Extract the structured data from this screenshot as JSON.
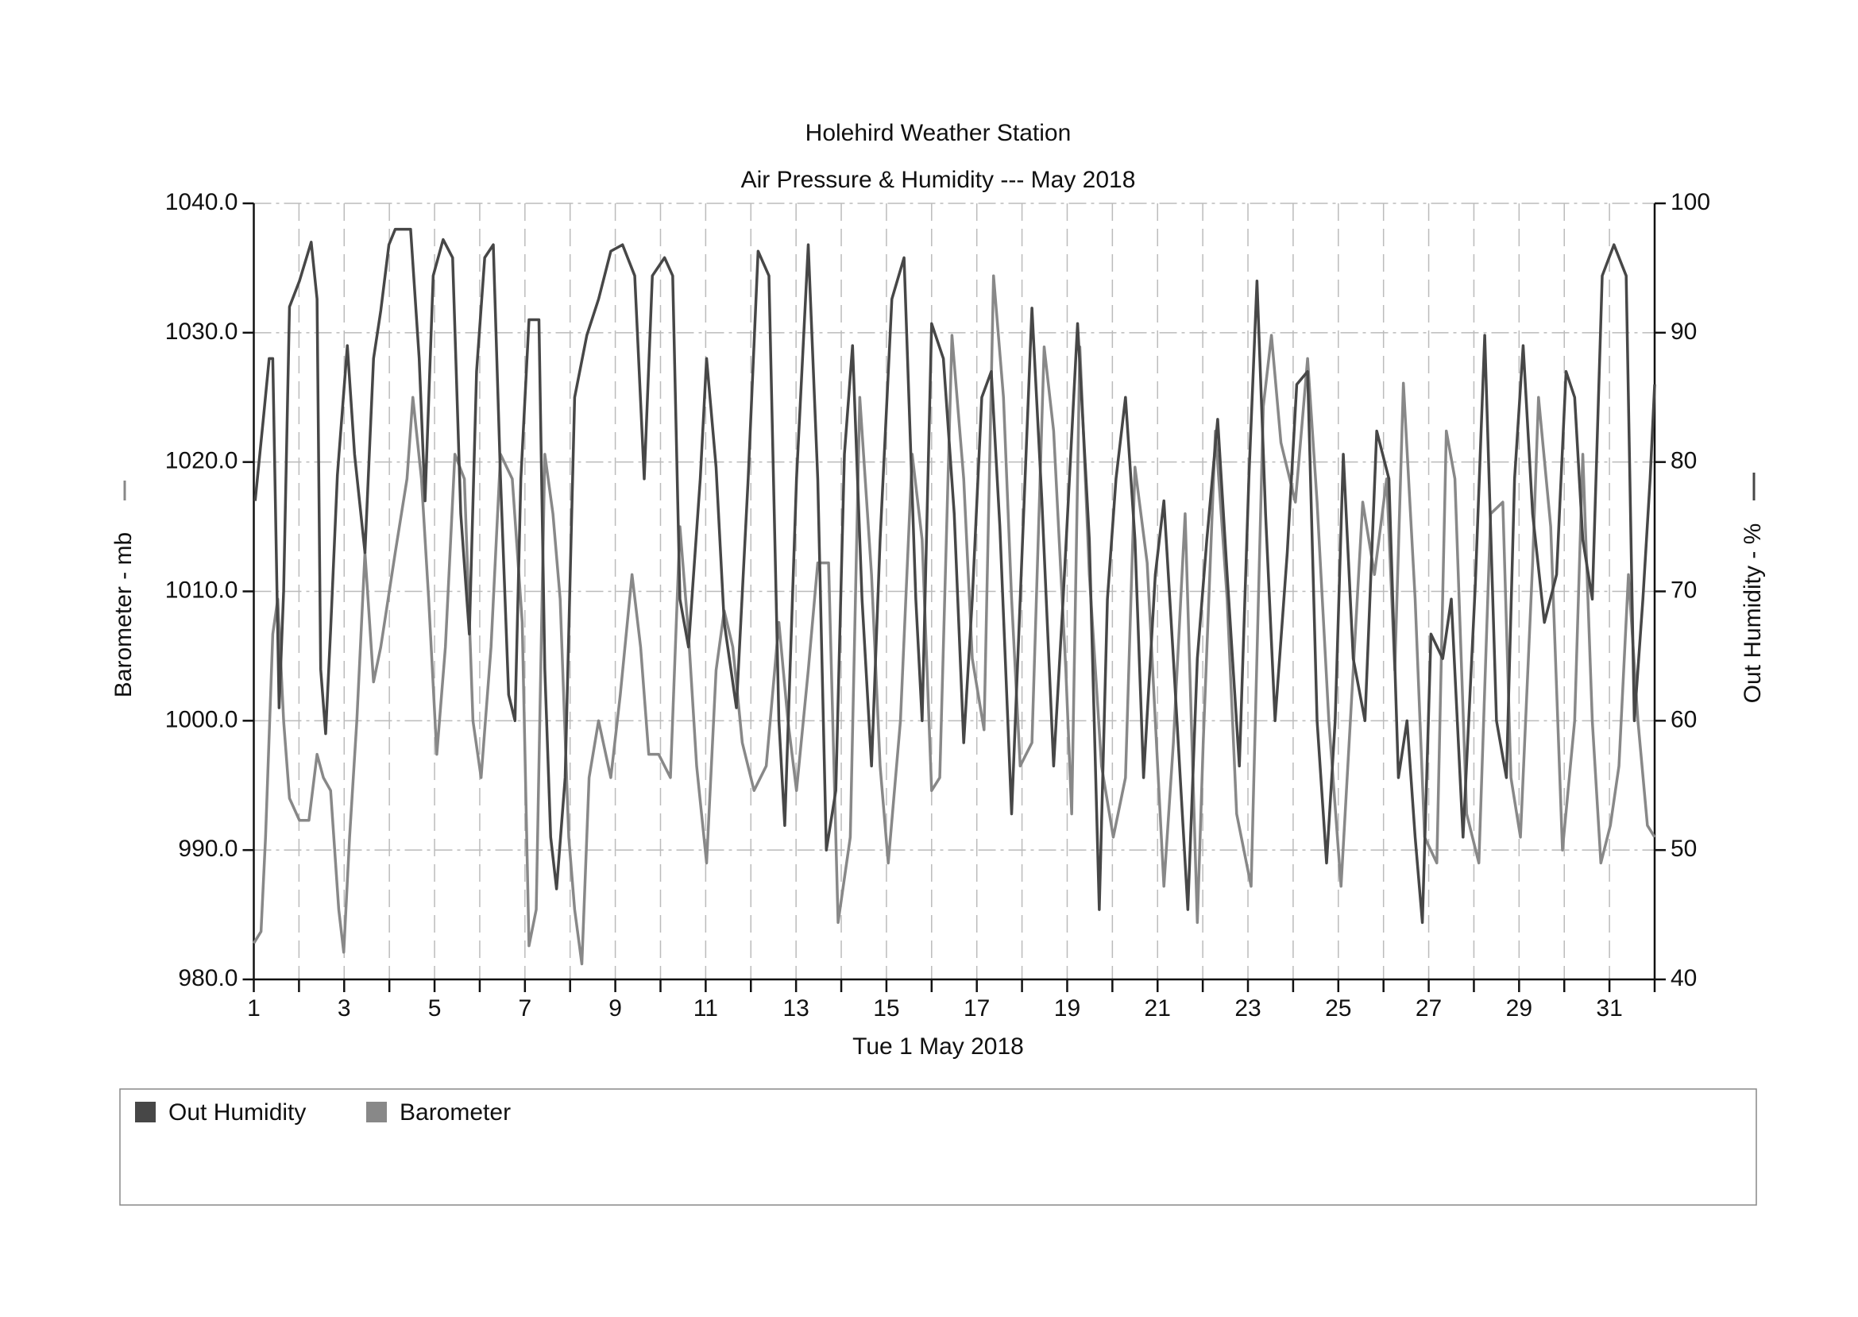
{
  "chart_data": {
    "type": "line",
    "title": "Holehird Weather Station",
    "subtitle": "Air Pressure & Humidity --- May 2018",
    "xlabel": "Tue 1 May 2018",
    "ylabel": "Barometer - mb",
    "y2label": "Out Humidity - %",
    "xlim": [
      1,
      32
    ],
    "xticks": [
      1,
      3,
      5,
      7,
      9,
      11,
      13,
      15,
      17,
      19,
      21,
      23,
      25,
      27,
      29,
      31
    ],
    "xminorticks": [
      2,
      4,
      6,
      8,
      10,
      12,
      14,
      16,
      18,
      20,
      22,
      24,
      26,
      28,
      30,
      32
    ],
    "ylim": [
      980,
      1040
    ],
    "yticks": [
      {
        "value": 980,
        "label": "980.0"
      },
      {
        "value": 990,
        "label": "990.0"
      },
      {
        "value": 1000,
        "label": "1000.0"
      },
      {
        "value": 1010,
        "label": "1010.0"
      },
      {
        "value": 1020,
        "label": "1020.0"
      },
      {
        "value": 1030,
        "label": "1030.0"
      },
      {
        "value": 1040,
        "label": "1040.0"
      }
    ],
    "y2lim": [
      40,
      100
    ],
    "y2ticks": [
      40,
      50,
      60,
      70,
      80,
      90,
      100
    ],
    "grid": true,
    "legend": "bottom",
    "series": [
      {
        "name": "Out Humidity",
        "color": "#474747",
        "axis": "y2",
        "x": [
          1.03,
          1.21,
          1.34,
          1.42,
          1.56,
          1.66,
          1.79,
          2.01,
          2.27,
          2.4,
          2.48,
          2.59,
          2.7,
          2.85,
          3.07,
          3.23,
          3.46,
          3.65,
          3.81,
          3.99,
          4.13,
          4.47,
          4.66,
          4.79,
          4.97,
          5.19,
          5.4,
          5.58,
          5.77,
          5.93,
          6.11,
          6.3,
          6.46,
          6.64,
          6.78,
          6.91,
          7.09,
          7.31,
          7.44,
          7.57,
          7.7,
          7.89,
          8.1,
          8.37,
          8.63,
          8.9,
          9.16,
          9.43,
          9.64,
          9.82,
          10.09,
          10.27,
          10.43,
          10.62,
          10.88,
          11.02,
          11.23,
          11.41,
          11.68,
          11.94,
          12.16,
          12.4,
          12.62,
          12.75,
          13.01,
          13.27,
          13.48,
          13.67,
          13.88,
          14.07,
          14.25,
          14.46,
          14.67,
          14.86,
          15.12,
          15.39,
          15.65,
          15.79,
          16.0,
          16.26,
          16.5,
          16.71,
          16.9,
          17.11,
          17.32,
          17.51,
          17.77,
          17.96,
          18.22,
          18.44,
          18.7,
          18.91,
          19.23,
          19.49,
          19.71,
          19.89,
          20.08,
          20.29,
          20.5,
          20.69,
          20.95,
          21.14,
          21.35,
          21.67,
          21.88,
          22.09,
          22.33,
          22.54,
          22.81,
          23.02,
          23.2,
          23.39,
          23.6,
          23.87,
          24.08,
          24.32,
          24.53,
          24.74,
          24.93,
          25.11,
          25.33,
          25.59,
          25.85,
          26.12,
          26.33,
          26.52,
          26.7,
          26.86,
          27.05,
          27.31,
          27.5,
          27.76,
          28.03,
          28.24,
          28.5,
          28.72,
          28.9,
          29.09,
          29.3,
          29.56,
          29.83,
          30.04,
          30.23,
          30.41,
          30.62,
          30.84,
          31.1,
          31.37,
          31.55,
          31.74,
          31.9,
          32.0
        ],
        "values": [
          77,
          83.3,
          88,
          88,
          61,
          70,
          92,
          94,
          97,
          92.6,
          64,
          59,
          67,
          79,
          89,
          80.6,
          73,
          88,
          91.7,
          96.8,
          98,
          98,
          88,
          77,
          94.4,
          97.2,
          95.8,
          76,
          66.7,
          87,
          95.8,
          96.8,
          78.7,
          62,
          60,
          78.7,
          91,
          91,
          64,
          51,
          47,
          55.6,
          85,
          89.8,
          92.6,
          96.3,
          96.8,
          94.4,
          78.7,
          94.4,
          95.8,
          94.4,
          69.4,
          65.7,
          78.7,
          88,
          79.6,
          67.6,
          61,
          78.7,
          96.3,
          94.4,
          60,
          51.9,
          78.7,
          96.8,
          78.7,
          50,
          54.6,
          80.6,
          89,
          69.4,
          56.5,
          74,
          92.6,
          95.8,
          69.4,
          60,
          90.7,
          88,
          76,
          58.3,
          69.4,
          85,
          87,
          75,
          52.8,
          69.4,
          91.9,
          77,
          56.5,
          69.4,
          90.7,
          74,
          45.4,
          69.4,
          78.7,
          85,
          74,
          55.6,
          71.3,
          77,
          64.8,
          45.4,
          64.8,
          74,
          83.3,
          71.3,
          56.5,
          78.7,
          94,
          76,
          60,
          73,
          86,
          87,
          60,
          49,
          60,
          80.6,
          64.8,
          60,
          82.4,
          78.7,
          55.6,
          60,
          51,
          44.4,
          66.7,
          64.8,
          69.4,
          51,
          70.4,
          89.8,
          60,
          55.6,
          78.7,
          89,
          76,
          67.6,
          71.3,
          87,
          85,
          74,
          69.4,
          94.4,
          96.8,
          94.4,
          60,
          69.4,
          78.7,
          86
        ]
      },
      {
        "name": "Barometer",
        "color": "#888888",
        "x": [
          1.0,
          1.16,
          1.26,
          1.42,
          1.53,
          1.66,
          1.79,
          2.01,
          2.22,
          2.4,
          2.54,
          2.7,
          2.88,
          2.99,
          3.12,
          3.28,
          3.46,
          3.65,
          3.81,
          4.13,
          4.39,
          4.52,
          4.71,
          4.87,
          5.05,
          5.24,
          5.45,
          5.66,
          5.85,
          6.03,
          6.25,
          6.46,
          6.72,
          6.94,
          7.09,
          7.25,
          7.44,
          7.62,
          7.78,
          7.97,
          8.1,
          8.26,
          8.42,
          8.63,
          8.9,
          9.11,
          9.37,
          9.56,
          9.74,
          9.96,
          10.22,
          10.43,
          10.62,
          10.8,
          11.02,
          11.23,
          11.41,
          11.6,
          11.81,
          12.07,
          12.34,
          12.62,
          12.82,
          13.01,
          13.27,
          13.48,
          13.72,
          13.93,
          14.2,
          14.41,
          14.67,
          14.86,
          15.04,
          15.31,
          15.57,
          15.79,
          16.0,
          16.18,
          16.45,
          16.71,
          16.9,
          17.16,
          17.37,
          17.59,
          17.77,
          17.96,
          18.22,
          18.49,
          18.7,
          18.97,
          19.1,
          19.28,
          19.49,
          19.76,
          20.02,
          20.29,
          20.5,
          20.77,
          20.95,
          21.14,
          21.35,
          21.61,
          21.88,
          22.01,
          22.28,
          22.54,
          22.75,
          23.07,
          23.34,
          23.52,
          23.73,
          24.05,
          24.32,
          24.53,
          24.79,
          25.06,
          25.33,
          25.54,
          25.8,
          26.07,
          26.25,
          26.44,
          26.7,
          26.91,
          27.18,
          27.39,
          27.58,
          27.84,
          28.11,
          28.37,
          28.64,
          28.82,
          29.03,
          29.3,
          29.43,
          29.7,
          29.96,
          30.23,
          30.41,
          30.62,
          30.81,
          31.02,
          31.21,
          31.42,
          31.63,
          31.84,
          32.0
        ],
        "values": [
          982.8,
          983.7,
          991,
          1006.7,
          1009.4,
          1000,
          994,
          992.3,
          992.3,
          997.4,
          995.6,
          994.6,
          985.4,
          982.1,
          991,
          1000,
          1013,
          1003,
          1005.7,
          1013,
          1018.7,
          1025,
          1018.7,
          1009.4,
          997.4,
          1005.7,
          1020.6,
          1018.7,
          1000,
          995.6,
          1005.7,
          1020.6,
          1018.7,
          1007.6,
          982.6,
          985.4,
          1020.6,
          1016,
          1009.4,
          991,
          985.4,
          981.2,
          995.6,
          1000,
          995.6,
          1002,
          1011.3,
          1005.7,
          997.4,
          997.4,
          995.6,
          1015,
          1006.7,
          996.5,
          989,
          1003.9,
          1008.5,
          1005.7,
          998.3,
          994.6,
          996.5,
          1007.6,
          1000,
          994.6,
          1003.9,
          1012.2,
          1012.2,
          984.4,
          991,
          1025,
          1011.3,
          996.5,
          989,
          1000,
          1020.6,
          1014,
          994.6,
          995.6,
          1029.8,
          1018.7,
          1004.8,
          999.3,
          1034.4,
          1025,
          1009.4,
          996.5,
          998.3,
          1028.9,
          1022.4,
          1003.9,
          992.8,
          1028.9,
          1011.3,
          996.5,
          991,
          995.6,
          1019.6,
          1012.2,
          1000,
          987.2,
          998.3,
          1016,
          984.4,
          998.3,
          1022.4,
          1009.4,
          992.8,
          987.2,
          1024.3,
          1029.8,
          1021.5,
          1016.9,
          1028,
          1016.9,
          1000,
          987.2,
          1003.9,
          1016.9,
          1011.3,
          1018.7,
          1003.9,
          1026.1,
          1009.4,
          991,
          989,
          1022.4,
          1018.7,
          992.8,
          989,
          1016,
          1016.9,
          995.6,
          991,
          1012.2,
          1025,
          1015,
          990,
          1000,
          1020.6,
          1000,
          989,
          991.9,
          996.5,
          1011.3,
          1000,
          991.9,
          991
        ]
      }
    ]
  }
}
